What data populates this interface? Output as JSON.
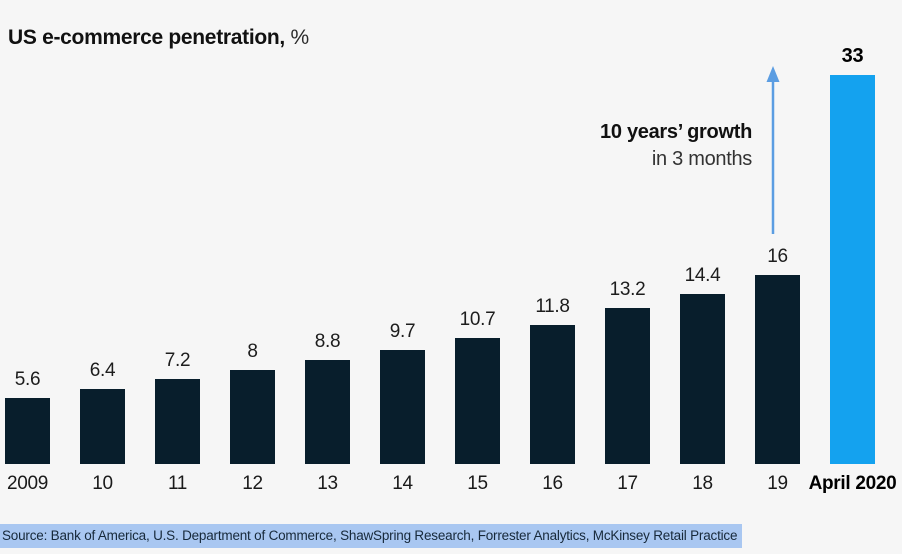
{
  "title": {
    "main": "US e-commerce penetration,",
    "unit": " %"
  },
  "annotation": {
    "line1": "10 years’ growth",
    "line2": "in 3 months"
  },
  "source": {
    "text": "Source: Bank of America, U.S. Department of Commerce, ShawSpring Research, Forrester Analytics, McKinsey Retail Practice"
  },
  "colors": {
    "background": "#f6f6f6",
    "bar": "#081e2c",
    "highlight_bar": "#14a2ef",
    "arrow": "#5b9de2",
    "source_highlight": "#a9c7f1"
  },
  "chart_data": {
    "type": "bar",
    "title": "US e-commerce penetration, %",
    "categories": [
      "2009",
      "10",
      "11",
      "12",
      "13",
      "14",
      "15",
      "16",
      "17",
      "18",
      "19",
      "April 2020"
    ],
    "values": [
      5.6,
      6.4,
      7.2,
      8,
      8.8,
      9.7,
      10.7,
      11.8,
      13.2,
      14.4,
      16,
      33
    ],
    "value_labels": [
      "5.6",
      "6.4",
      "7.2",
      "8",
      "8.8",
      "9.7",
      "10.7",
      "11.8",
      "13.2",
      "14.4",
      "16",
      "33"
    ],
    "xlabel": "",
    "ylabel": "",
    "ylim": [
      0,
      33
    ],
    "grid": false,
    "legend": "none",
    "highlight_index": 11,
    "annotation": "10 years' growth in 3 months (arrow from 2019 bar top to April 2020 bar top)"
  }
}
